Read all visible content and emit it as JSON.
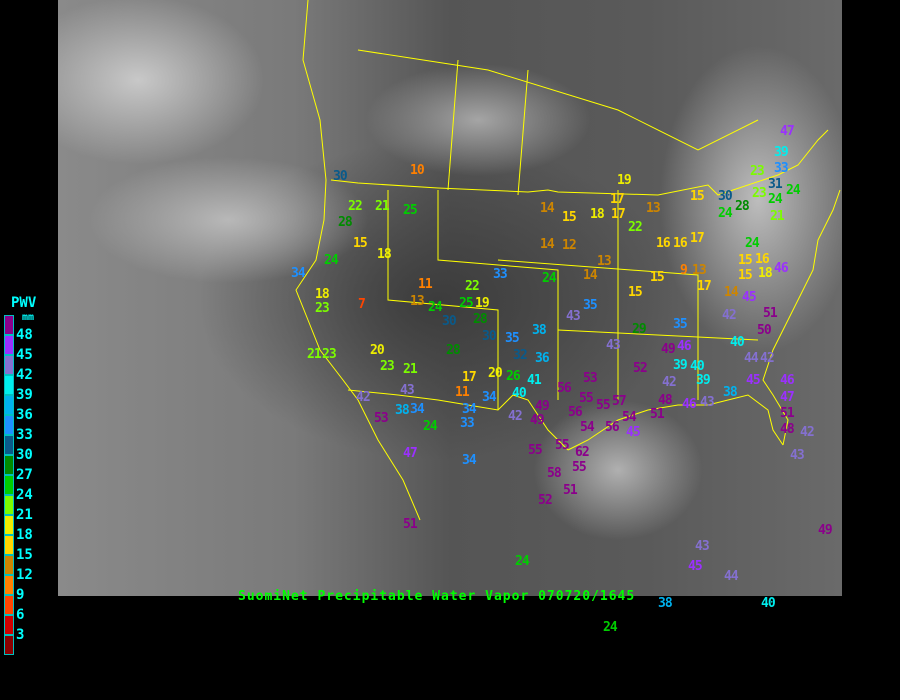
{
  "title": "SuomiNet Precipitable Water Vapor 070720/1645",
  "legend": {
    "title": "PWV",
    "unit": "mm",
    "labels": [
      "48",
      "45",
      "42",
      "39",
      "36",
      "33",
      "30",
      "27",
      "24",
      "21",
      "18",
      "15",
      "12",
      "9",
      "6",
      "3"
    ],
    "colors": [
      "#8b008b",
      "#9b30ff",
      "#8470d0",
      "#00eeee",
      "#00b2ee",
      "#1e90ff",
      "#0a5a8a",
      "#008b00",
      "#00cd00",
      "#7cfc00",
      "#eeee00",
      "#ffd700",
      "#cd8500",
      "#ff8000",
      "#ff4500",
      "#d00000",
      "#8b0000"
    ]
  },
  "map": {
    "border_color": "#ffff00",
    "station_values": [
      10,
      30,
      22,
      21,
      25,
      28,
      15,
      18,
      24,
      34,
      18,
      23,
      7,
      11,
      13,
      24,
      22,
      19,
      25,
      28,
      33,
      14,
      15,
      14,
      12,
      24,
      30,
      30,
      28,
      21,
      23,
      20,
      23,
      21,
      17,
      11,
      20,
      26,
      35,
      32,
      36,
      38,
      41,
      40,
      42,
      43,
      53,
      38,
      34,
      24,
      34,
      33,
      34,
      42,
      47,
      34,
      49,
      49,
      56,
      54,
      56,
      55,
      55,
      62,
      58,
      55,
      51,
      52,
      51,
      24,
      43,
      45,
      44,
      38,
      40,
      24,
      49,
      35,
      43,
      29,
      43,
      52,
      35,
      46,
      49,
      42,
      39,
      40,
      39,
      48,
      46,
      43,
      38,
      45,
      40,
      44,
      42,
      51,
      50,
      45,
      42,
      46,
      47,
      39,
      33,
      23,
      31,
      24,
      23,
      24,
      30,
      28,
      24,
      21,
      24,
      16,
      18,
      15,
      14,
      17,
      19,
      15,
      22,
      13,
      16,
      9,
      13,
      17,
      15,
      15,
      14,
      13,
      18,
      17,
      16,
      55,
      53,
      57,
      54,
      45,
      51,
      56,
      55,
      46,
      47,
      51,
      43,
      42,
      48,
      17,
      15
    ]
  }
}
